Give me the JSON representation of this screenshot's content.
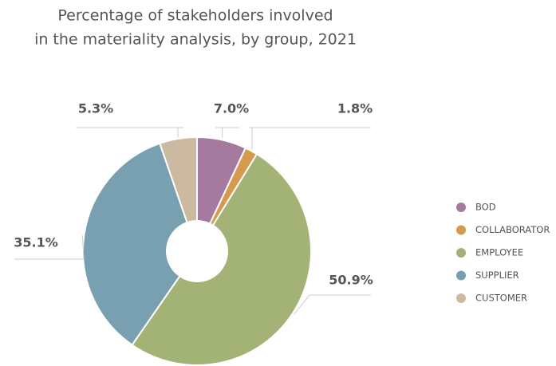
{
  "chart_data": {
    "type": "donut",
    "title": [
      "Percentage of stakeholders involved",
      "in the materiality analysis, by group, 2021"
    ],
    "categories": [
      "BOD",
      "COLLABORATOR",
      "EMPLOYEE",
      "SUPPLIER",
      "CUSTOMER"
    ],
    "values": [
      7.0,
      1.8,
      50.9,
      35.1,
      5.3
    ],
    "value_labels": [
      "7.0%",
      "1.8%",
      "50.9%",
      "35.1%",
      "5.3%"
    ],
    "colors": [
      "#a57a9f",
      "#d59a4e",
      "#a3b375",
      "#79a0b0",
      "#ccbaa0"
    ],
    "legend": "right"
  }
}
